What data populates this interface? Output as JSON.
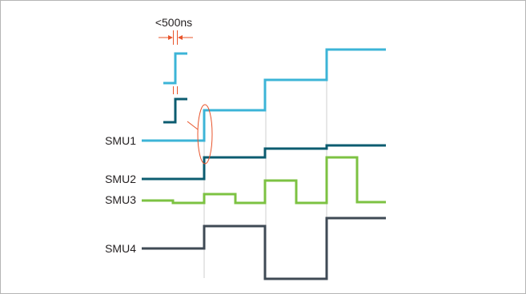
{
  "labels": {
    "smu1": "SMU1",
    "smu2": "SMU2",
    "smu3": "SMU3",
    "smu4": "SMU4",
    "timing": "<500ns"
  },
  "colors": {
    "border": "#b5b5b5",
    "guide": "#cfcfcf",
    "smu1": "#3cb4d7",
    "smu2": "#0c5c70",
    "smu3": "#7cc242",
    "smu4": "#3f4a55",
    "annotation": "#e8542b"
  }
}
